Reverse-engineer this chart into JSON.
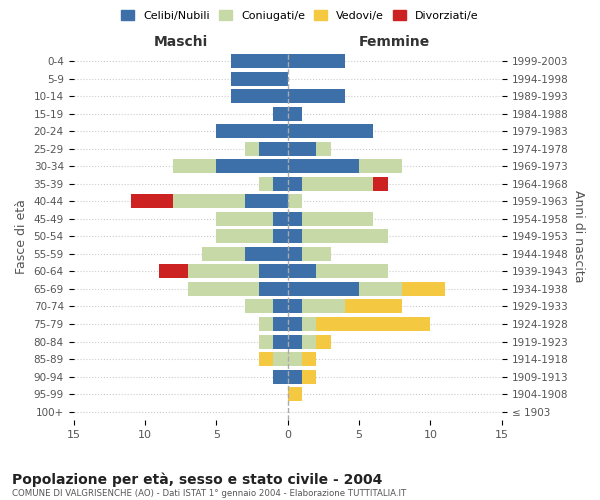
{
  "age_groups": [
    "100+",
    "95-99",
    "90-94",
    "85-89",
    "80-84",
    "75-79",
    "70-74",
    "65-69",
    "60-64",
    "55-59",
    "50-54",
    "45-49",
    "40-44",
    "35-39",
    "30-34",
    "25-29",
    "20-24",
    "15-19",
    "10-14",
    "5-9",
    "0-4"
  ],
  "birth_years": [
    "≤ 1903",
    "1904-1908",
    "1909-1913",
    "1914-1918",
    "1919-1923",
    "1924-1928",
    "1929-1933",
    "1934-1938",
    "1939-1943",
    "1944-1948",
    "1949-1953",
    "1954-1958",
    "1959-1963",
    "1964-1968",
    "1969-1973",
    "1974-1978",
    "1979-1983",
    "1984-1988",
    "1989-1993",
    "1994-1998",
    "1999-2003"
  ],
  "male": {
    "celibi": [
      0,
      0,
      1,
      0,
      1,
      1,
      1,
      2,
      2,
      3,
      1,
      1,
      3,
      1,
      5,
      2,
      5,
      1,
      4,
      4,
      4
    ],
    "coniugati": [
      0,
      0,
      0,
      1,
      1,
      1,
      2,
      5,
      5,
      3,
      4,
      4,
      5,
      1,
      3,
      1,
      0,
      0,
      0,
      0,
      0
    ],
    "vedovi": [
      0,
      0,
      0,
      1,
      0,
      0,
      0,
      0,
      0,
      0,
      0,
      0,
      0,
      0,
      0,
      0,
      0,
      0,
      0,
      0,
      0
    ],
    "divorziati": [
      0,
      0,
      0,
      0,
      0,
      0,
      0,
      0,
      2,
      0,
      0,
      0,
      3,
      0,
      0,
      0,
      0,
      0,
      0,
      0,
      0
    ]
  },
  "female": {
    "nubili": [
      0,
      0,
      1,
      0,
      1,
      1,
      1,
      5,
      2,
      1,
      1,
      1,
      0,
      1,
      5,
      2,
      6,
      1,
      4,
      0,
      4
    ],
    "coniugate": [
      0,
      0,
      0,
      1,
      1,
      1,
      3,
      3,
      5,
      2,
      6,
      5,
      1,
      5,
      3,
      1,
      0,
      0,
      0,
      0,
      0
    ],
    "vedove": [
      0,
      1,
      1,
      1,
      1,
      8,
      4,
      3,
      0,
      0,
      0,
      0,
      0,
      0,
      0,
      0,
      0,
      0,
      0,
      0,
      0
    ],
    "divorziate": [
      0,
      0,
      0,
      0,
      0,
      0,
      0,
      0,
      0,
      0,
      0,
      0,
      0,
      1,
      0,
      0,
      0,
      0,
      0,
      0,
      0
    ]
  },
  "colors": {
    "celibi": "#3d6fa8",
    "coniugati": "#c8d9a8",
    "vedovi": "#f5c842",
    "divorziati": "#cc2222"
  },
  "xlim": 15,
  "title": "Popolazione per età, sesso e stato civile - 2004",
  "subtitle": "COMUNE DI VALGRISENCHE (AO) - Dati ISTAT 1° gennaio 2004 - Elaborazione TUTTITALIA.IT",
  "ylabel_left": "Fasce di età",
  "ylabel_right": "Anni di nascita",
  "xlabel_maschi": "Maschi",
  "xlabel_femmine": "Femmine",
  "bg_color": "#ffffff",
  "grid_color": "#cccccc",
  "legend_labels": [
    "Celibi/Nubili",
    "Coniugati/e",
    "Vedovi/e",
    "Divorziati/e"
  ]
}
